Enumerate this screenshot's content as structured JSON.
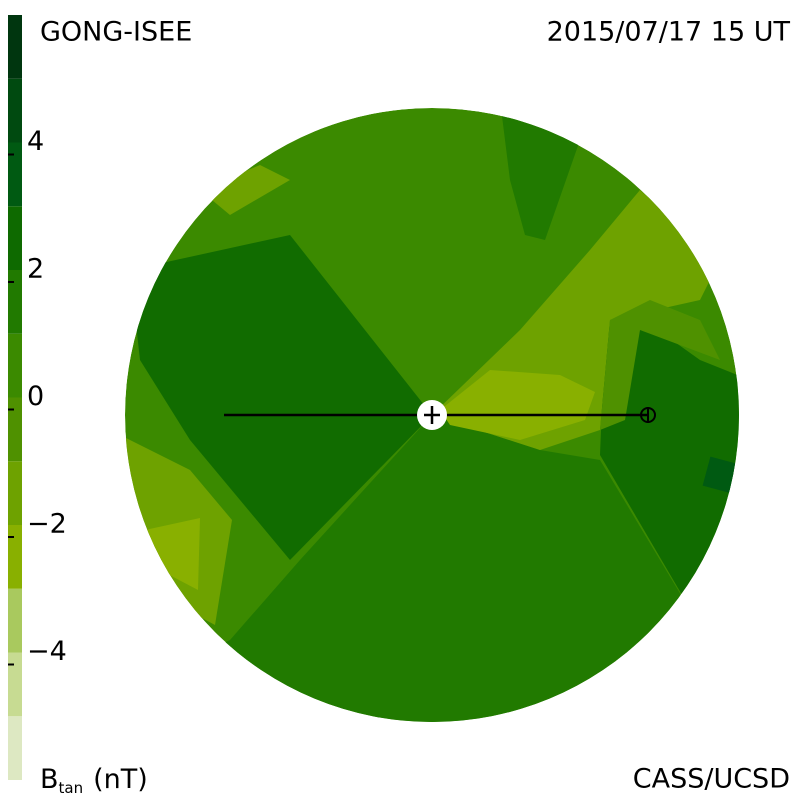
{
  "chart_data": {
    "type": "colormap",
    "title_left": "GONG-ISEE",
    "title_right": "2015/07/17 15 UT",
    "credit": "CASS/UCSD",
    "colorbar_label": {
      "symbol": "B",
      "subscript": "tan",
      "unit": "(nT)"
    },
    "clim": [
      -6,
      6
    ],
    "levels": [
      -6,
      -5,
      -4,
      -3,
      -2,
      -1,
      0,
      1,
      2,
      3,
      4,
      5,
      6
    ],
    "colors": [
      "#dde8c2",
      "#c7db92",
      "#a9c95e",
      "#89b000",
      "#6ea200",
      "#4f9100",
      "#3b8a00",
      "#217a00",
      "#0e6a00",
      "#005a12",
      "#004a10",
      "#00360f"
    ],
    "cticks": [
      {
        "value": 4,
        "label": "4"
      },
      {
        "value": 2,
        "label": "2"
      },
      {
        "value": 0,
        "label": "0"
      },
      {
        "value": -2,
        "label": "−2"
      },
      {
        "value": -4,
        "label": "−4"
      }
    ]
  }
}
